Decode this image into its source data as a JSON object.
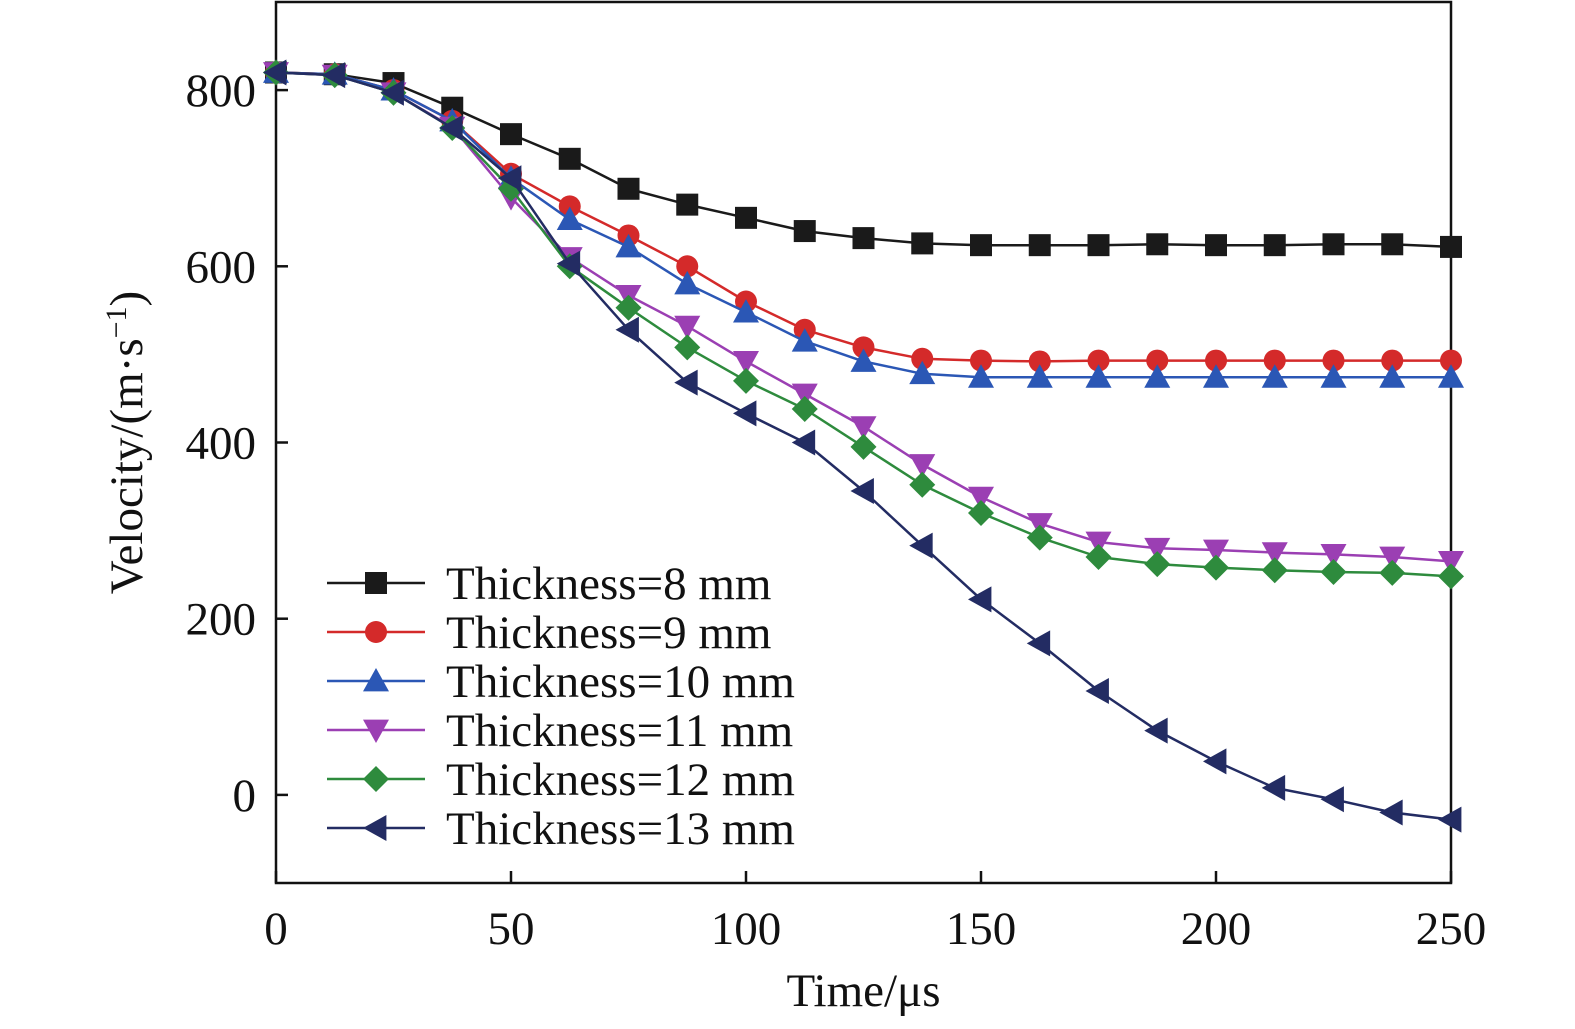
{
  "chart_data": {
    "type": "line",
    "xlabel": "Time/μs",
    "ylabel": {
      "prefix": "Velocity/(m·s",
      "sup": "−1",
      "suffix": ")"
    },
    "xlim": [
      0,
      250
    ],
    "ylim": [
      -100,
      900
    ],
    "xticks": [
      0,
      50,
      100,
      150,
      200,
      250
    ],
    "yticks": [
      0,
      200,
      400,
      600,
      800
    ],
    "grid": false,
    "legend_position": "lower-left",
    "x": [
      0,
      12.5,
      25,
      37.5,
      50,
      62.5,
      75,
      87.5,
      100,
      112.5,
      125,
      137.5,
      150,
      162.5,
      175,
      187.5,
      200,
      212.5,
      225,
      237.5,
      250
    ],
    "series": [
      {
        "name": "Thickness=8 mm",
        "color": "#1a1a1a",
        "marker": "square",
        "values": [
          820,
          818,
          808,
          780,
          750,
          722,
          688,
          670,
          655,
          640,
          632,
          626,
          624,
          624,
          624,
          625,
          624,
          624,
          625,
          625,
          622
        ]
      },
      {
        "name": "Thickness=9 mm",
        "color": "#d42a2a",
        "marker": "circle",
        "values": [
          820,
          818,
          800,
          765,
          705,
          668,
          635,
          600,
          560,
          528,
          508,
          495,
          493,
          492,
          493,
          493,
          493,
          493,
          493,
          493,
          493
        ]
      },
      {
        "name": "Thickness=10 mm",
        "color": "#2b57b5",
        "marker": "triangle-up",
        "values": [
          820,
          818,
          800,
          765,
          700,
          653,
          622,
          580,
          548,
          515,
          492,
          478,
          474,
          474,
          474,
          474,
          474,
          474,
          474,
          474,
          474
        ]
      },
      {
        "name": "Thickness=11 mm",
        "color": "#9b3fb3",
        "marker": "triangle-down",
        "values": [
          820,
          817,
          797,
          758,
          678,
          610,
          567,
          532,
          492,
          455,
          418,
          375,
          338,
          308,
          287,
          280,
          278,
          275,
          273,
          270,
          265
        ]
      },
      {
        "name": "Thickness=12 mm",
        "color": "#2e8b3d",
        "marker": "diamond",
        "values": [
          820,
          817,
          797,
          757,
          688,
          600,
          553,
          508,
          470,
          438,
          395,
          352,
          320,
          292,
          270,
          262,
          258,
          255,
          253,
          252,
          248
        ]
      },
      {
        "name": "Thickness=13 mm",
        "color": "#232c63",
        "marker": "triangle-left",
        "values": [
          820,
          817,
          797,
          757,
          700,
          603,
          528,
          468,
          433,
          400,
          345,
          283,
          222,
          172,
          118,
          73,
          38,
          8,
          -5,
          -20,
          -28
        ]
      }
    ]
  }
}
